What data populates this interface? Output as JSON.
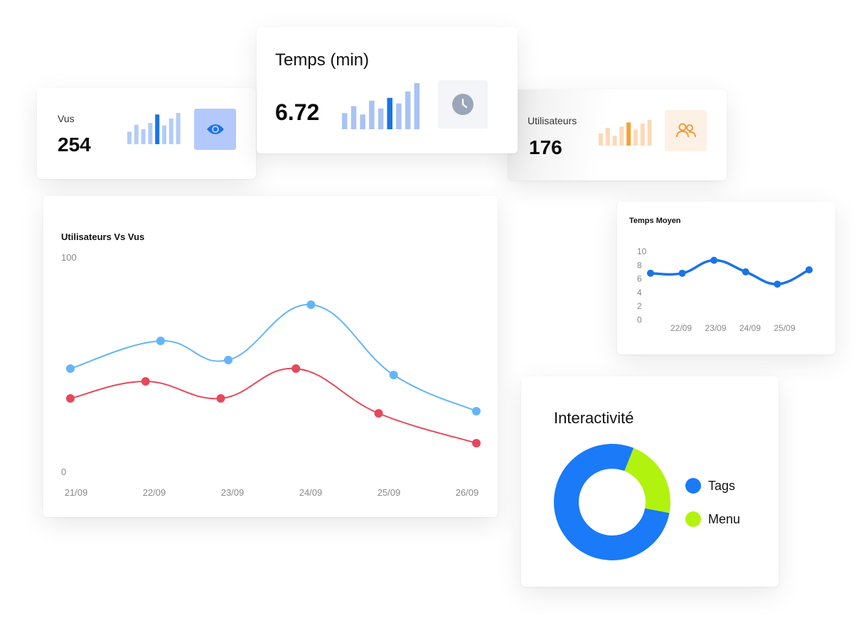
{
  "stats": {
    "vus": {
      "label": "Vus",
      "value": "254",
      "bars": [
        0.4,
        0.62,
        0.48,
        0.68,
        0.95,
        0.6,
        0.82,
        1.0
      ],
      "highlight": 4,
      "bar_color": "#b3ccf7",
      "highlight_color": "#1a73e8",
      "icon_bg": "#b3c9fb",
      "icon_color": "#1a73e8",
      "icon": "eye-icon"
    },
    "temps": {
      "title": "Temps (min)",
      "value": "6.72",
      "bars": [
        0.35,
        0.5,
        0.32,
        0.62,
        0.45,
        0.68,
        0.56,
        0.82,
        1.0
      ],
      "highlight": 5,
      "bar_color": "#a9c2f5",
      "highlight_color": "#1a73e8",
      "icon_bg": "#f3f5f8",
      "icon_color": "#9aa6b8",
      "icon": "clock-icon"
    },
    "utilisateurs": {
      "label": "Utilisateurs",
      "value": "176",
      "bars": [
        0.4,
        0.58,
        0.32,
        0.62,
        0.76,
        0.52,
        0.72,
        0.84,
        1.0
      ],
      "highlight": 4,
      "bar_color": "#fbd9b7",
      "highlight_color": "#f7a234",
      "icon_bg": "#fdf1e5",
      "icon_color": "#f19a3b",
      "icon": "users-icon"
    }
  },
  "chart_data": [
    {
      "type": "line",
      "title": "Utilisateurs Vs Vus",
      "categories": [
        "21/09",
        "22/09",
        "23/09",
        "24/09",
        "25/09",
        "26/09"
      ],
      "ylim": [
        0,
        100
      ],
      "yticks": [
        "100",
        "0"
      ],
      "grid": false,
      "series": [
        {
          "color": "#64b5f6",
          "x": [
            21,
            22.2,
            23.1,
            24.2,
            25.3,
            26.4
          ],
          "values": [
            48,
            61,
            52,
            78,
            45,
            28
          ]
        },
        {
          "color": "#e5485a",
          "x": [
            21,
            22,
            23,
            24,
            25.1,
            26.4
          ],
          "values": [
            34,
            42,
            34,
            48,
            27,
            13
          ]
        }
      ]
    },
    {
      "type": "line",
      "title": "Temps Moyen",
      "categories": [
        "22/09",
        "23/09",
        "24/09",
        "25/09"
      ],
      "yticks": [
        "10",
        "8",
        "6",
        "4",
        "2",
        "0"
      ],
      "ylim": [
        0,
        10
      ],
      "grid": false,
      "series": [
        {
          "color": "#1a73e8",
          "x": [
            21,
            22,
            23,
            24,
            25,
            26
          ],
          "values": [
            6.8,
            6.8,
            8.7,
            7.0,
            5.2,
            7.3
          ]
        }
      ]
    },
    {
      "type": "pie",
      "title": "Interactivité",
      "labels": [
        "Tags",
        "Menu"
      ],
      "values": [
        78,
        22
      ],
      "colors": [
        "#1a7af7",
        "#b1f30e"
      ]
    }
  ]
}
